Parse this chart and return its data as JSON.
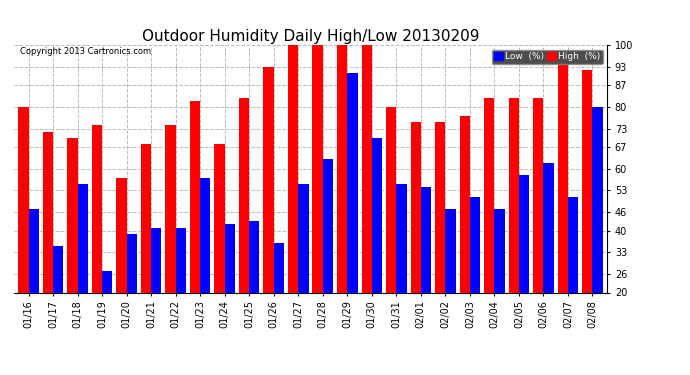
{
  "title": "Outdoor Humidity Daily High/Low 20130209",
  "copyright": "Copyright 2013 Cartronics.com",
  "dates": [
    "01/16",
    "01/17",
    "01/18",
    "01/19",
    "01/20",
    "01/21",
    "01/22",
    "01/23",
    "01/24",
    "01/25",
    "01/26",
    "01/27",
    "01/28",
    "01/29",
    "01/30",
    "01/31",
    "02/01",
    "02/02",
    "02/03",
    "02/04",
    "02/05",
    "02/06",
    "02/07",
    "02/08"
  ],
  "high": [
    80,
    72,
    70,
    74,
    57,
    68,
    74,
    82,
    68,
    83,
    93,
    100,
    100,
    101,
    100,
    80,
    75,
    75,
    77,
    83,
    83,
    83,
    94,
    92
  ],
  "low": [
    47,
    35,
    55,
    27,
    39,
    41,
    41,
    57,
    42,
    43,
    36,
    55,
    63,
    91,
    70,
    55,
    54,
    47,
    51,
    47,
    58,
    62,
    51,
    80
  ],
  "high_color": "#ff0000",
  "low_color": "#0000ff",
  "bg_color": "#ffffff",
  "ylim": [
    20,
    100
  ],
  "yticks": [
    20,
    26,
    33,
    40,
    46,
    53,
    60,
    67,
    73,
    80,
    87,
    93,
    100
  ],
  "grid_color": "#bbbbbb",
  "bar_width": 0.42,
  "title_fontsize": 11,
  "tick_fontsize": 7,
  "legend_low_label": "Low  (%)",
  "legend_high_label": "High  (%)"
}
